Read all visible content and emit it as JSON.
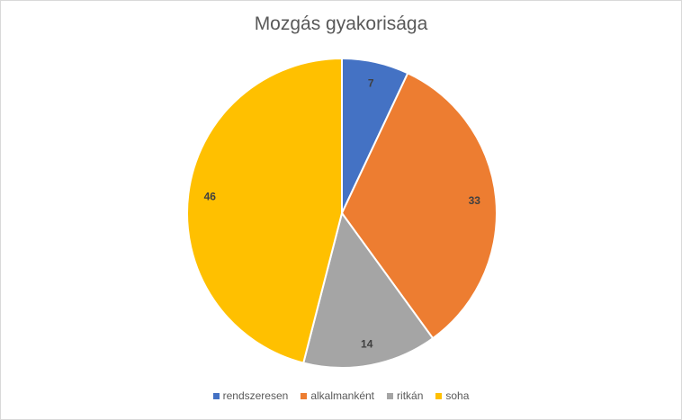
{
  "chart_data": {
    "type": "pie",
    "title": "Mozgás gyakorisága",
    "categories": [
      "rendszeresen",
      "alkalmanként",
      "ritkán",
      "soha"
    ],
    "values": [
      7,
      33,
      14,
      46
    ],
    "colors": [
      "#4472c4",
      "#ed7d31",
      "#a5a5a5",
      "#ffc000"
    ],
    "data_labels": [
      "7",
      "33",
      "14",
      "46"
    ],
    "legend": "bottom"
  }
}
